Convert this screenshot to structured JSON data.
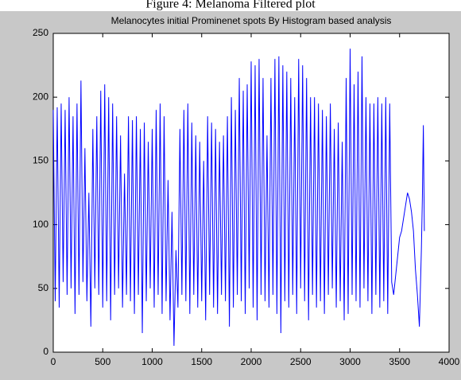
{
  "caption": "Figure 4: Melanoma Filtered plot",
  "chart_data": {
    "type": "line",
    "title": "Melanocytes initial Prominenet spots By Histogram based analysis",
    "xlim": [
      0,
      4000
    ],
    "xticks": [
      0,
      500,
      1000,
      1500,
      2000,
      2500,
      3000,
      3500,
      4000
    ],
    "ylim": [
      0,
      250
    ],
    "yticks": [
      0,
      50,
      100,
      150,
      200,
      250
    ],
    "grid": false,
    "series": [
      {
        "color": "#0000ff",
        "x": [
          0,
          20,
          40,
          60,
          80,
          100,
          120,
          140,
          160,
          180,
          200,
          220,
          240,
          260,
          280,
          300,
          320,
          340,
          360,
          380,
          400,
          420,
          440,
          460,
          480,
          500,
          520,
          540,
          560,
          580,
          600,
          620,
          640,
          660,
          680,
          700,
          720,
          740,
          760,
          780,
          800,
          820,
          840,
          860,
          880,
          900,
          920,
          940,
          960,
          980,
          1000,
          1020,
          1040,
          1060,
          1080,
          1100,
          1120,
          1140,
          1160,
          1180,
          1200,
          1220,
          1240,
          1260,
          1280,
          1300,
          1320,
          1340,
          1360,
          1380,
          1400,
          1420,
          1440,
          1460,
          1480,
          1500,
          1520,
          1540,
          1560,
          1580,
          1600,
          1620,
          1640,
          1660,
          1680,
          1700,
          1720,
          1740,
          1760,
          1780,
          1800,
          1820,
          1840,
          1860,
          1880,
          1900,
          1920,
          1940,
          1960,
          1980,
          2000,
          2020,
          2040,
          2060,
          2080,
          2100,
          2120,
          2140,
          2160,
          2180,
          2200,
          2220,
          2240,
          2260,
          2280,
          2300,
          2320,
          2340,
          2360,
          2380,
          2400,
          2420,
          2440,
          2460,
          2480,
          2500,
          2520,
          2540,
          2560,
          2580,
          2600,
          2620,
          2640,
          2660,
          2680,
          2700,
          2720,
          2740,
          2760,
          2780,
          2800,
          2820,
          2840,
          2860,
          2880,
          2900,
          2920,
          2940,
          2960,
          2980,
          3000,
          3020,
          3040,
          3060,
          3080,
          3100,
          3120,
          3140,
          3160,
          3180,
          3200,
          3220,
          3240,
          3260,
          3280,
          3300,
          3320,
          3340,
          3360,
          3380,
          3400,
          3420,
          3440,
          3460,
          3480,
          3500,
          3520,
          3540,
          3560,
          3580,
          3600,
          3620,
          3640,
          3660,
          3680,
          3700,
          3720,
          3730,
          3740,
          3750
        ],
        "values": [
          190,
          40,
          192,
          35,
          195,
          55,
          190,
          45,
          200,
          50,
          185,
          30,
          195,
          45,
          213,
          55,
          160,
          40,
          125,
          20,
          175,
          50,
          185,
          45,
          205,
          35,
          210,
          40,
          200,
          25,
          195,
          45,
          185,
          50,
          170,
          35,
          140,
          45,
          185,
          40,
          182,
          30,
          185,
          45,
          175,
          15,
          180,
          40,
          165,
          50,
          175,
          35,
          190,
          45,
          195,
          30,
          185,
          40,
          135,
          25,
          110,
          5,
          80,
          35,
          175,
          45,
          190,
          40,
          195,
          30,
          180,
          45,
          170,
          35,
          165,
          40,
          150,
          25,
          185,
          45,
          180,
          35,
          175,
          30,
          165,
          45,
          170,
          40,
          185,
          20,
          200,
          35,
          190,
          45,
          215,
          40,
          205,
          30,
          210,
          50,
          228,
          35,
          225,
          25,
          230,
          45,
          215,
          40,
          170,
          35,
          215,
          45,
          230,
          30,
          232,
          15,
          225,
          40,
          220,
          35,
          215,
          45,
          200,
          30,
          230,
          50,
          225,
          40,
          215,
          25,
          200,
          45,
          200,
          35,
          195,
          40,
          190,
          30,
          185,
          45,
          195,
          50,
          175,
          35,
          180,
          40,
          165,
          25,
          215,
          30,
          238,
          45,
          210,
          40,
          220,
          35,
          232,
          50,
          200,
          40,
          195,
          30,
          195,
          45,
          200,
          35,
          195,
          40,
          200,
          30,
          195,
          55,
          45,
          60,
          75,
          90,
          95,
          105,
          115,
          125,
          120,
          110,
          95,
          65,
          45,
          20,
          80,
          120,
          178,
          95
        ]
      }
    ]
  }
}
